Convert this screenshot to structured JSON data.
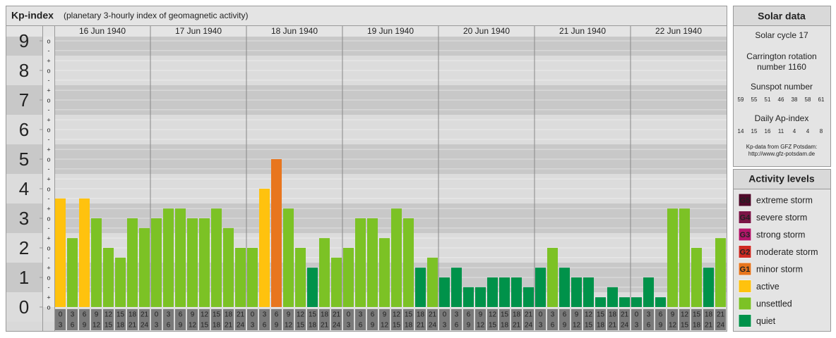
{
  "chart_data": {
    "type": "bar",
    "title": "Kp-index",
    "subtitle": "(planetary 3-hourly index of geomagnetic activity)",
    "categories": [
      "16 Jun 1940",
      "17 Jun 1940",
      "18 Jun 1940",
      "19 Jun 1940",
      "20 Jun 1940",
      "21 Jun 1940",
      "22 Jun 1940"
    ],
    "time_labels": [
      "0",
      "3",
      "6",
      "9",
      "12",
      "15",
      "18",
      "21",
      "24"
    ],
    "values": [
      [
        3.67,
        2.33,
        3.67,
        3,
        2,
        1.67,
        3,
        2.67
      ],
      [
        3,
        3.33,
        3.33,
        3,
        3,
        3.33,
        2.67,
        2
      ],
      [
        2,
        4,
        5,
        3.33,
        2,
        1.33,
        2.33,
        1.67
      ],
      [
        2,
        3,
        3,
        2.33,
        3.33,
        3,
        1.33,
        1.67
      ],
      [
        1,
        1.33,
        0.67,
        0.67,
        1,
        1,
        1,
        0.67
      ],
      [
        1.33,
        2,
        1.33,
        1,
        1,
        0.33,
        0.67,
        0.33
      ],
      [
        0.33,
        1,
        0.33,
        3.33,
        3.33,
        2,
        1.33,
        2.33
      ]
    ],
    "colors": [
      [
        "#ffc20e",
        "#7cc225",
        "#ffc20e",
        "#7cc225",
        "#7cc225",
        "#7cc225",
        "#7cc225",
        "#7cc225"
      ],
      [
        "#7cc225",
        "#7cc225",
        "#7cc225",
        "#7cc225",
        "#7cc225",
        "#7cc225",
        "#7cc225",
        "#7cc225"
      ],
      [
        "#7cc225",
        "#ffc20e",
        "#e8761e",
        "#7cc225",
        "#7cc225",
        "#00924a",
        "#7cc225",
        "#7cc225"
      ],
      [
        "#7cc225",
        "#7cc225",
        "#7cc225",
        "#7cc225",
        "#7cc225",
        "#7cc225",
        "#00924a",
        "#7cc225"
      ],
      [
        "#00924a",
        "#00924a",
        "#00924a",
        "#00924a",
        "#00924a",
        "#00924a",
        "#00924a",
        "#00924a"
      ],
      [
        "#00924a",
        "#7cc225",
        "#00924a",
        "#00924a",
        "#00924a",
        "#00924a",
        "#00924a",
        "#00924a"
      ],
      [
        "#00924a",
        "#00924a",
        "#00924a",
        "#7cc225",
        "#7cc225",
        "#7cc225",
        "#00924a",
        "#7cc225"
      ]
    ],
    "ylim": [
      0,
      9.5
    ],
    "yticks": [
      0,
      1,
      2,
      3,
      4,
      5,
      6,
      7,
      8,
      9
    ],
    "minor_ticks": [
      {
        "value": 0,
        "label": "o"
      },
      {
        "value": 0.33,
        "label": "+"
      },
      {
        "value": 0.67,
        "label": "-"
      },
      {
        "value": 1,
        "label": "o"
      },
      {
        "value": 1.33,
        "label": "+"
      },
      {
        "value": 1.67,
        "label": "-"
      },
      {
        "value": 2,
        "label": "o"
      },
      {
        "value": 2.33,
        "label": "+"
      },
      {
        "value": 2.67,
        "label": "-"
      },
      {
        "value": 3,
        "label": "o"
      },
      {
        "value": 3.33,
        "label": "+"
      },
      {
        "value": 3.67,
        "label": "-"
      },
      {
        "value": 4,
        "label": "o"
      },
      {
        "value": 4.33,
        "label": "+"
      },
      {
        "value": 4.67,
        "label": "-"
      },
      {
        "value": 5,
        "label": "o"
      },
      {
        "value": 5.33,
        "label": "+"
      },
      {
        "value": 5.67,
        "label": "-"
      },
      {
        "value": 6,
        "label": "o"
      },
      {
        "value": 6.33,
        "label": "+"
      },
      {
        "value": 6.67,
        "label": "-"
      },
      {
        "value": 7,
        "label": "o"
      },
      {
        "value": 7.33,
        "label": "+"
      },
      {
        "value": 7.67,
        "label": "-"
      },
      {
        "value": 8,
        "label": "o"
      },
      {
        "value": 8.33,
        "label": "+"
      },
      {
        "value": 8.67,
        "label": "-"
      },
      {
        "value": 9,
        "label": "o"
      }
    ],
    "grid": true
  },
  "solar_data": {
    "title": "Solar data",
    "cycle": "Solar cycle 17",
    "carrington": [
      "Carrington rotation",
      "number 1160"
    ],
    "sunspot_title": "Sunspot number",
    "sunspot": [
      59,
      55,
      51,
      46,
      38,
      58,
      61
    ],
    "ap_title": "Daily Ap-index",
    "ap": [
      14,
      15,
      16,
      11,
      4,
      4,
      8
    ],
    "source": [
      "Kp-data from GFZ Potsdam:",
      "http://www.gfz-potsdam.de"
    ]
  },
  "activity_levels": {
    "title": "Activity levels",
    "items": [
      {
        "badge": "G5",
        "label": "extreme storm",
        "color": "#4f0a2a"
      },
      {
        "badge": "G4",
        "label": "severe storm",
        "color": "#7b1446"
      },
      {
        "badge": "G3",
        "label": "strong storm",
        "color": "#b4156a"
      },
      {
        "badge": "G2",
        "label": "moderate storm",
        "color": "#cf2a22"
      },
      {
        "badge": "G1",
        "label": "minor storm",
        "color": "#e8761e"
      },
      {
        "label": "active",
        "color": "#ffc20e"
      },
      {
        "label": "unsettled",
        "color": "#7cc225"
      },
      {
        "label": "quiet",
        "color": "#00924a"
      }
    ]
  }
}
